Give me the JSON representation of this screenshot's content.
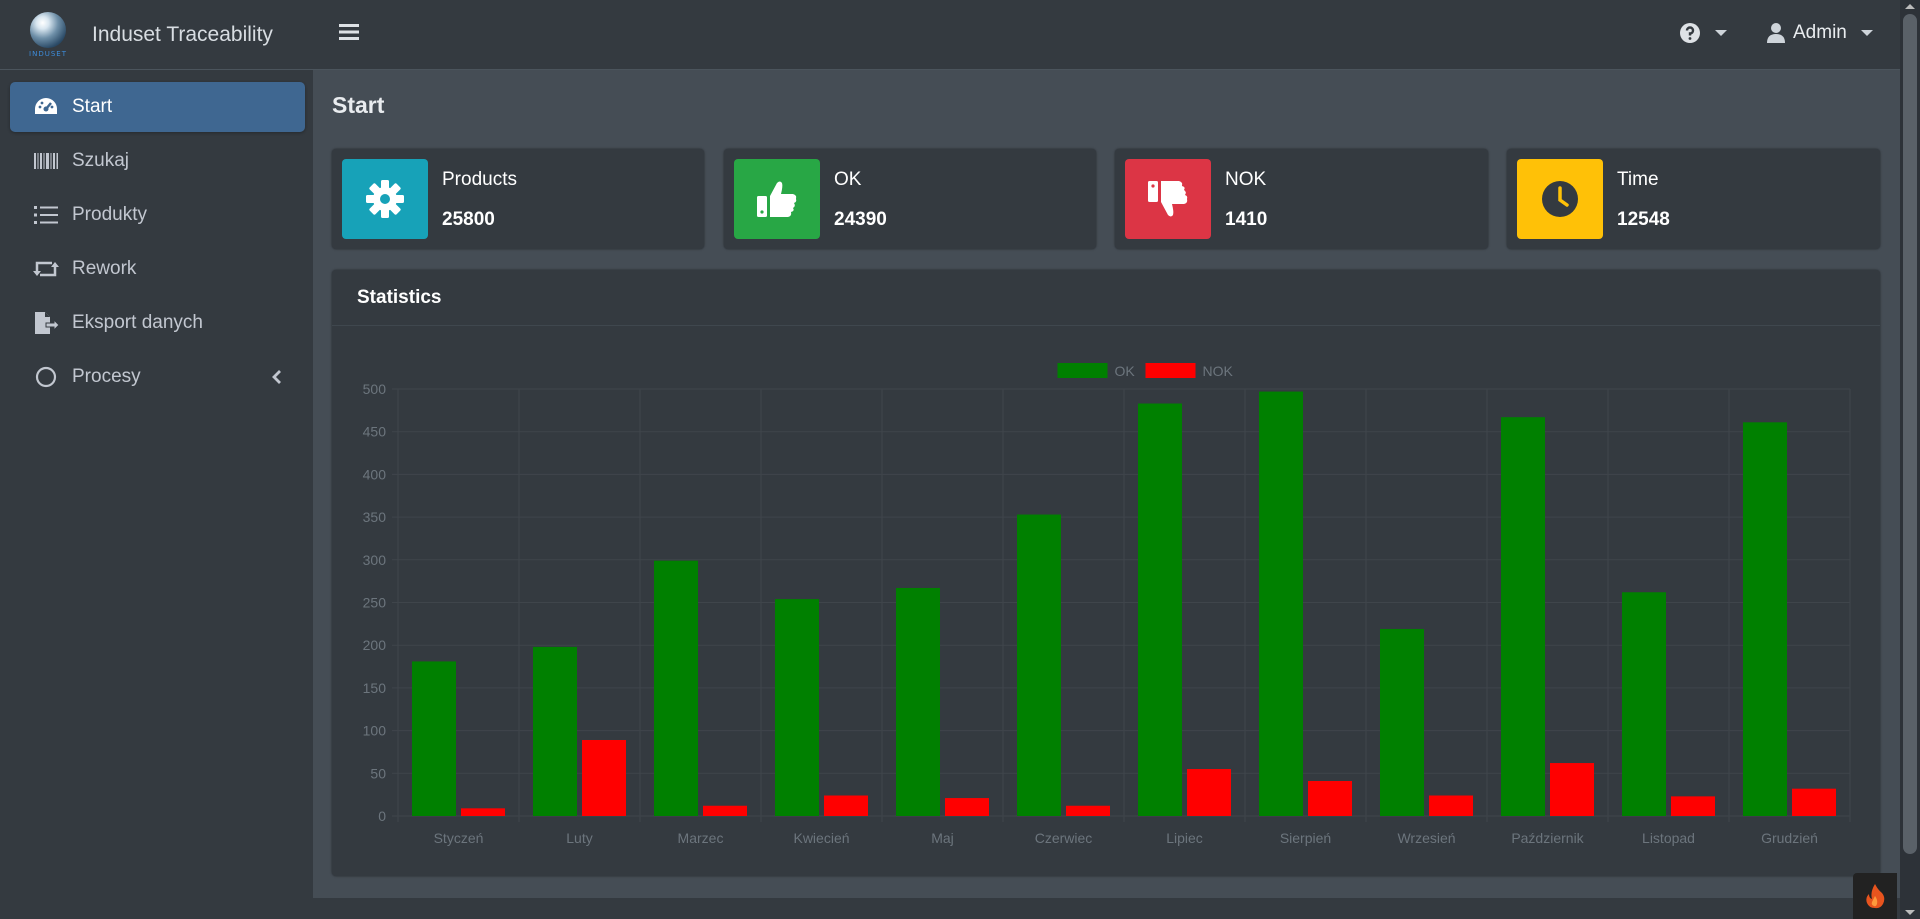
{
  "brand": {
    "title": "Induset Traceability",
    "logo_text": "INDUSET"
  },
  "sidebar": {
    "items": [
      {
        "label": "Start",
        "icon": "tachometer-icon"
      },
      {
        "label": "Szukaj",
        "icon": "barcode-icon"
      },
      {
        "label": "Produkty",
        "icon": "list-icon"
      },
      {
        "label": "Rework",
        "icon": "retweet-icon"
      },
      {
        "label": "Eksport danych",
        "icon": "file-export-icon"
      },
      {
        "label": "Procesy",
        "icon": "circle-icon"
      }
    ]
  },
  "topbar": {
    "user_label": "Admin"
  },
  "page": {
    "title": "Start"
  },
  "info_boxes": [
    {
      "label": "Products",
      "value": "25800",
      "color": "#17a2b8",
      "icon": "gear-icon"
    },
    {
      "label": "OK",
      "value": "24390",
      "color": "#28a745",
      "icon": "thumbs-up-icon"
    },
    {
      "label": "NOK",
      "value": "1410",
      "color": "#dc3545",
      "icon": "thumbs-down-icon"
    },
    {
      "label": "Time",
      "value": "12548",
      "color": "#ffc107",
      "icon": "clock-icon"
    }
  ],
  "statistics": {
    "title": "Statistics"
  },
  "chart_data": {
    "type": "bar",
    "categories": [
      "Styczeń",
      "Luty",
      "Marzec",
      "Kwiecień",
      "Maj",
      "Czerwiec",
      "Lipiec",
      "Sierpień",
      "Wrzesień",
      "Październik",
      "Listopad",
      "Grudzień"
    ],
    "series": [
      {
        "name": "OK",
        "color": "#008000",
        "values": [
          181,
          198,
          299,
          254,
          267,
          353,
          483,
          497,
          219,
          467,
          262,
          461
        ]
      },
      {
        "name": "NOK",
        "color": "#ff0000",
        "values": [
          9,
          89,
          12,
          24,
          21,
          12,
          55,
          41,
          24,
          62,
          23,
          32
        ]
      }
    ],
    "ylim": [
      0,
      500
    ],
    "yticks": [
      0,
      50,
      100,
      150,
      200,
      250,
      300,
      350,
      400,
      450,
      500
    ],
    "grid": true,
    "legend": "top-center"
  }
}
